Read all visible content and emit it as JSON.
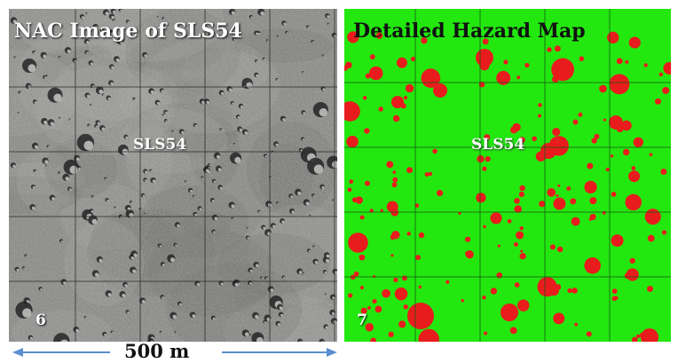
{
  "left_panel": {
    "title": "NAC Image of SLS54",
    "site_label": "SLS54",
    "panel_number": "6",
    "base_color": "#8a8a88"
  },
  "right_panel": {
    "title": "Detailed Hazard Map",
    "site_label": "SLS54",
    "panel_number": "7",
    "background_color": "#22e80f",
    "hazard_color": "#e81c1c"
  },
  "scale": {
    "label": "500 m",
    "arrow_color": "#5b8fd1"
  }
}
